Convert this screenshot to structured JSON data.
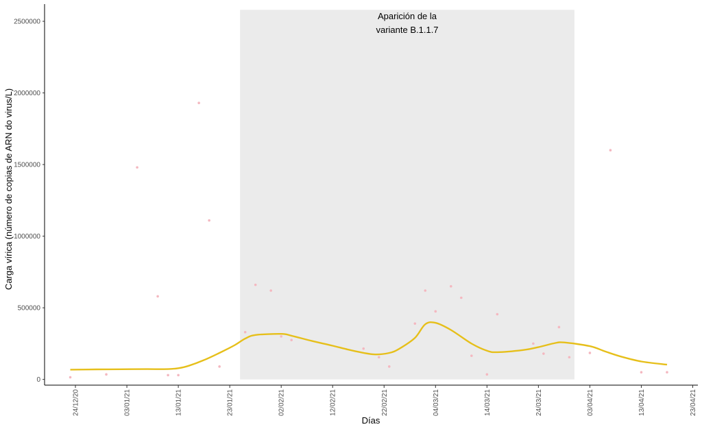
{
  "chart_data": {
    "type": "scatter",
    "xlabel": "Días",
    "ylabel": "Carga vírica (número de copias de ARN do virus/L)",
    "x_scale": "date",
    "xlim": [
      "2020-12-18",
      "2021-04-24"
    ],
    "ylim": [
      -40000,
      2620000
    ],
    "x_ticks": [
      "2020-12-24",
      "2021-01-03",
      "2021-01-13",
      "2021-01-23",
      "2021-02-02",
      "2021-02-12",
      "2021-02-22",
      "2021-03-04",
      "2021-03-14",
      "2021-03-24",
      "2021-04-03",
      "2021-04-13",
      "2021-04-23"
    ],
    "x_tick_labels": [
      "24/12/20",
      "03/01/21",
      "13/01/21",
      "23/01/21",
      "02/02/21",
      "12/02/21",
      "22/02/21",
      "04/03/21",
      "14/03/21",
      "24/03/21",
      "03/04/21",
      "13/04/21",
      "23/04/21"
    ],
    "y_ticks": [
      0,
      500000,
      1000000,
      1500000,
      2000000,
      2500000
    ],
    "y_tick_labels": [
      "0",
      "500000",
      "1000000",
      "1500000",
      "2000000",
      "2500000"
    ],
    "grid": false,
    "shaded_region": {
      "x_start": "2021-01-25",
      "x_end": "2021-03-31",
      "y_end": 2580000,
      "color": "#ebebeb",
      "label_lines": [
        "Aparición de la",
        "variante B.1.1.7"
      ]
    },
    "series": [
      {
        "kind": "points",
        "color": "#f4b8c0",
        "points": [
          {
            "x": "2020-12-23",
            "y": 15000
          },
          {
            "x": "2020-12-30",
            "y": 35000
          },
          {
            "x": "2021-01-05",
            "y": 1480000
          },
          {
            "x": "2021-01-09",
            "y": 580000
          },
          {
            "x": "2021-01-11",
            "y": 30000
          },
          {
            "x": "2021-01-13",
            "y": 30000
          },
          {
            "x": "2021-01-17",
            "y": 1930000
          },
          {
            "x": "2021-01-19",
            "y": 1110000
          },
          {
            "x": "2021-01-21",
            "y": 90000
          },
          {
            "x": "2021-01-26",
            "y": 330000
          },
          {
            "x": "2021-01-28",
            "y": 660000
          },
          {
            "x": "2021-01-31",
            "y": 620000
          },
          {
            "x": "2021-02-02",
            "y": 300000
          },
          {
            "x": "2021-02-04",
            "y": 275000
          },
          {
            "x": "2021-02-18",
            "y": 215000
          },
          {
            "x": "2021-02-21",
            "y": 155000
          },
          {
            "x": "2021-02-23",
            "y": 90000
          },
          {
            "x": "2021-02-28",
            "y": 390000
          },
          {
            "x": "2021-03-02",
            "y": 620000
          },
          {
            "x": "2021-03-04",
            "y": 475000
          },
          {
            "x": "2021-03-07",
            "y": 650000
          },
          {
            "x": "2021-03-09",
            "y": 570000
          },
          {
            "x": "2021-03-11",
            "y": 165000
          },
          {
            "x": "2021-03-14",
            "y": 35000
          },
          {
            "x": "2021-03-16",
            "y": 455000
          },
          {
            "x": "2021-03-23",
            "y": 250000
          },
          {
            "x": "2021-03-25",
            "y": 180000
          },
          {
            "x": "2021-03-28",
            "y": 365000
          },
          {
            "x": "2021-03-30",
            "y": 155000
          },
          {
            "x": "2021-04-03",
            "y": 185000
          },
          {
            "x": "2021-04-07",
            "y": 1600000
          },
          {
            "x": "2021-04-13",
            "y": 50000
          },
          {
            "x": "2021-04-18",
            "y": 50000
          }
        ]
      },
      {
        "kind": "smooth_line",
        "color": "#e6bf1a",
        "points": [
          {
            "x": "2020-12-23",
            "y": 68000
          },
          {
            "x": "2020-12-28",
            "y": 70000
          },
          {
            "x": "2021-01-02",
            "y": 71000
          },
          {
            "x": "2021-01-07",
            "y": 72000
          },
          {
            "x": "2021-01-11",
            "y": 72000
          },
          {
            "x": "2021-01-13",
            "y": 78000
          },
          {
            "x": "2021-01-15",
            "y": 95000
          },
          {
            "x": "2021-01-18",
            "y": 135000
          },
          {
            "x": "2021-01-21",
            "y": 185000
          },
          {
            "x": "2021-01-24",
            "y": 240000
          },
          {
            "x": "2021-01-26",
            "y": 285000
          },
          {
            "x": "2021-01-28",
            "y": 310000
          },
          {
            "x": "2021-02-02",
            "y": 318000
          },
          {
            "x": "2021-02-04",
            "y": 305000
          },
          {
            "x": "2021-02-08",
            "y": 268000
          },
          {
            "x": "2021-02-12",
            "y": 235000
          },
          {
            "x": "2021-02-16",
            "y": 200000
          },
          {
            "x": "2021-02-20",
            "y": 175000
          },
          {
            "x": "2021-02-23",
            "y": 185000
          },
          {
            "x": "2021-02-25",
            "y": 215000
          },
          {
            "x": "2021-02-28",
            "y": 290000
          },
          {
            "x": "2021-03-02",
            "y": 385000
          },
          {
            "x": "2021-03-04",
            "y": 395000
          },
          {
            "x": "2021-03-07",
            "y": 345000
          },
          {
            "x": "2021-03-11",
            "y": 250000
          },
          {
            "x": "2021-03-14",
            "y": 200000
          },
          {
            "x": "2021-03-16",
            "y": 190000
          },
          {
            "x": "2021-03-21",
            "y": 205000
          },
          {
            "x": "2021-03-24",
            "y": 225000
          },
          {
            "x": "2021-03-27",
            "y": 252000
          },
          {
            "x": "2021-03-29",
            "y": 258000
          },
          {
            "x": "2021-04-03",
            "y": 232000
          },
          {
            "x": "2021-04-06",
            "y": 195000
          },
          {
            "x": "2021-04-09",
            "y": 160000
          },
          {
            "x": "2021-04-13",
            "y": 125000
          },
          {
            "x": "2021-04-18",
            "y": 103000
          }
        ]
      }
    ]
  }
}
